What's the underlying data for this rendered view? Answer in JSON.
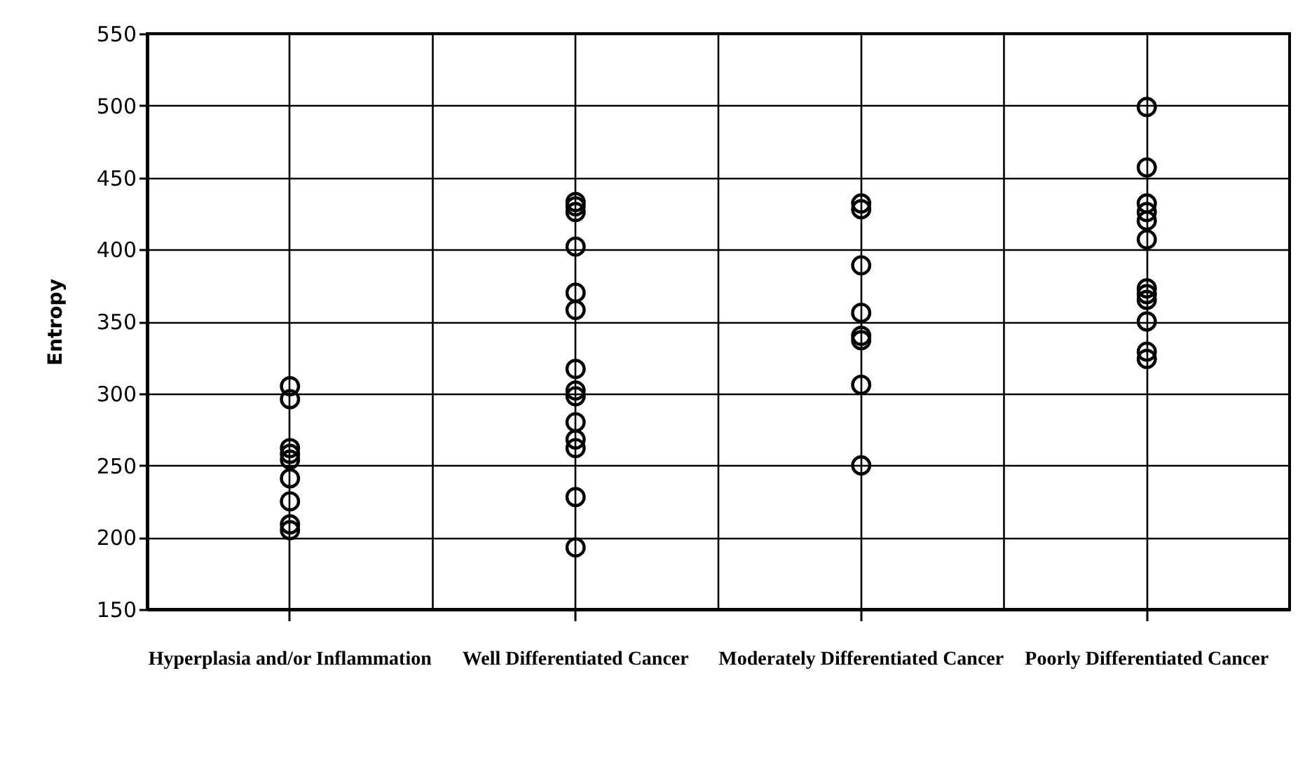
{
  "chart_data": {
    "type": "scatter",
    "ylabel": "Entropy",
    "categories": [
      "Hyperplasia and/or\nInflammation",
      "Well\nDifferentiated\nCancer",
      "Moderately\nDifferentiated\nCancer",
      "Poorly\nDifferentiated\nCancer"
    ],
    "series": [
      {
        "color": "#000000",
        "x": [
          "Hyperplasia and/or\nInflammation",
          "Hyperplasia and/or\nInflammation",
          "Hyperplasia and/or\nInflammation",
          "Hyperplasia and/or\nInflammation",
          "Hyperplasia and/or\nInflammation",
          "Hyperplasia and/or\nInflammation",
          "Hyperplasia and/or\nInflammation",
          "Hyperplasia and/or\nInflammation",
          "Hyperplasia and/or\nInflammation",
          "Well\nDifferentiated\nCancer",
          "Well\nDifferentiated\nCancer",
          "Well\nDifferentiated\nCancer",
          "Well\nDifferentiated\nCancer",
          "Well\nDifferentiated\nCancer",
          "Well\nDifferentiated\nCancer",
          "Well\nDifferentiated\nCancer",
          "Well\nDifferentiated\nCancer",
          "Well\nDifferentiated\nCancer",
          "Well\nDifferentiated\nCancer",
          "Well\nDifferentiated\nCancer",
          "Well\nDifferentiated\nCancer",
          "Well\nDifferentiated\nCancer",
          "Well\nDifferentiated\nCancer",
          "Moderately\nDifferentiated\nCancer",
          "Moderately\nDifferentiated\nCancer",
          "Moderately\nDifferentiated\nCancer",
          "Moderately\nDifferentiated\nCancer",
          "Moderately\nDifferentiated\nCancer",
          "Moderately\nDifferentiated\nCancer",
          "Moderately\nDifferentiated\nCancer",
          "Moderately\nDifferentiated\nCancer",
          "Poorly\nDifferentiated\nCancer",
          "Poorly\nDifferentiated\nCancer",
          "Poorly\nDifferentiated\nCancer",
          "Poorly\nDifferentiated\nCancer",
          "Poorly\nDifferentiated\nCancer",
          "Poorly\nDifferentiated\nCancer",
          "Poorly\nDifferentiated\nCancer",
          "Poorly\nDifferentiated\nCancer",
          "Poorly\nDifferentiated\nCancer",
          "Poorly\nDifferentiated\nCancer",
          "Poorly\nDifferentiated\nCancer",
          "Poorly\nDifferentiated\nCancer"
        ],
        "values": [
          305,
          296,
          262,
          258,
          254,
          241,
          225,
          209,
          205,
          433,
          430,
          426,
          402,
          370,
          358,
          317,
          302,
          298,
          280,
          268,
          262,
          228,
          193,
          432,
          428,
          389,
          356,
          340,
          337,
          306,
          250,
          499,
          457,
          432,
          426,
          420,
          407,
          373,
          369,
          365,
          350,
          329,
          324
        ]
      }
    ],
    "ylim": [
      150,
      550
    ],
    "yticks": [
      150,
      200,
      250,
      300,
      350,
      400,
      450,
      500,
      550
    ],
    "grid": true,
    "marker": "circle",
    "legend": false
  }
}
